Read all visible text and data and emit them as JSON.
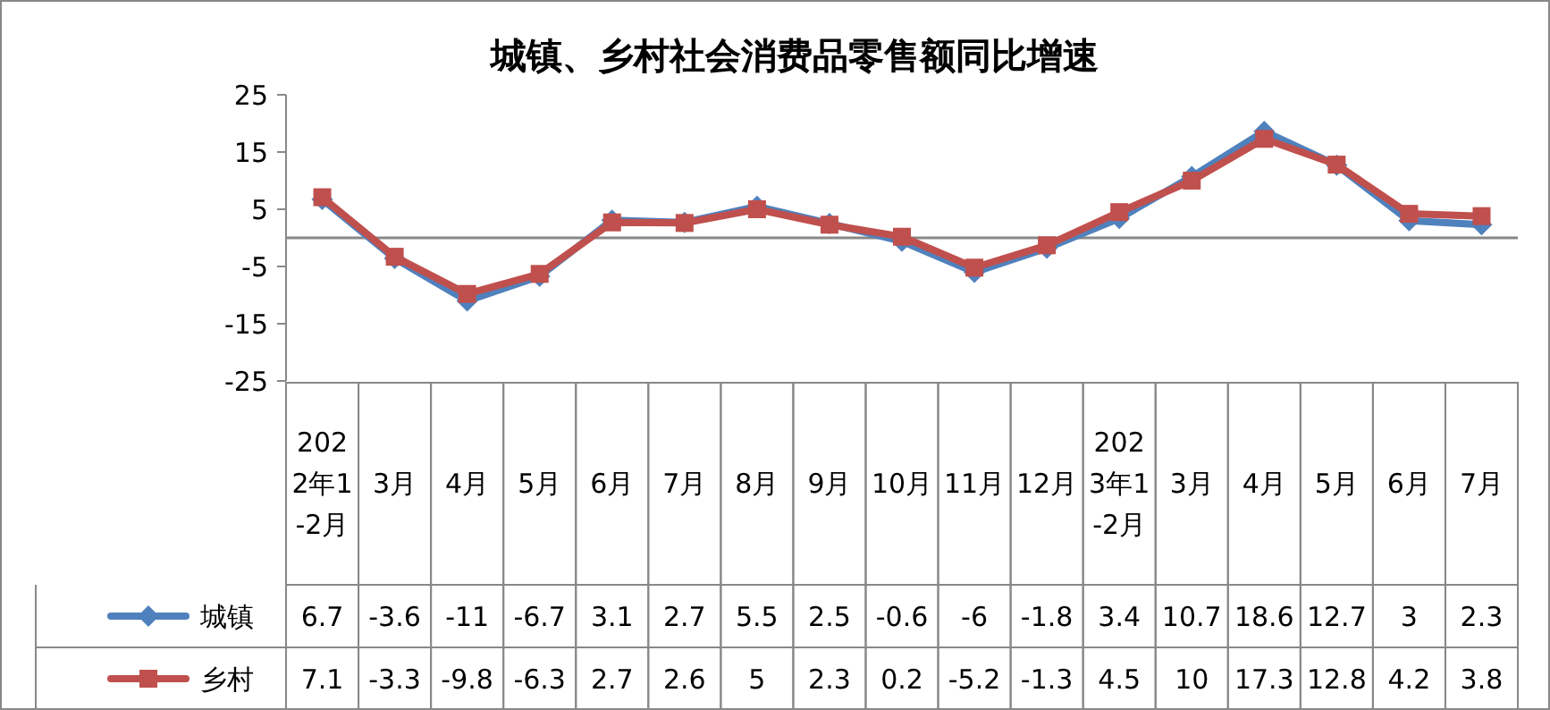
{
  "chart_data": {
    "type": "line",
    "title": "城镇、乡村社会消费品零售额同比增速",
    "categories": [
      "2022年1-2月",
      "3月",
      "4月",
      "5月",
      "6月",
      "7月",
      "8月",
      "9月",
      "10月",
      "11月",
      "12月",
      "2023年1-2月",
      "3月",
      "4月",
      "5月",
      "6月",
      "7月"
    ],
    "series": [
      {
        "name": "城镇",
        "color": "#4f81bd",
        "marker": "diamond",
        "values": [
          6.7,
          -3.6,
          -11,
          -6.7,
          3.1,
          2.7,
          5.5,
          2.5,
          -0.6,
          -6,
          -1.8,
          3.4,
          10.7,
          18.6,
          12.7,
          3,
          2.3
        ]
      },
      {
        "name": "乡村",
        "color": "#c0504d",
        "marker": "square",
        "values": [
          7.1,
          -3.3,
          -9.8,
          -6.3,
          2.7,
          2.6,
          5,
          2.3,
          0.2,
          -5.2,
          -1.3,
          4.5,
          10,
          17.3,
          12.8,
          4.2,
          3.8
        ]
      }
    ],
    "ylim": [
      -25,
      25
    ],
    "yticks": [
      -25,
      -15,
      -5,
      5,
      15,
      25
    ],
    "grid": false,
    "legend": "bottom left",
    "data_labels": true
  }
}
